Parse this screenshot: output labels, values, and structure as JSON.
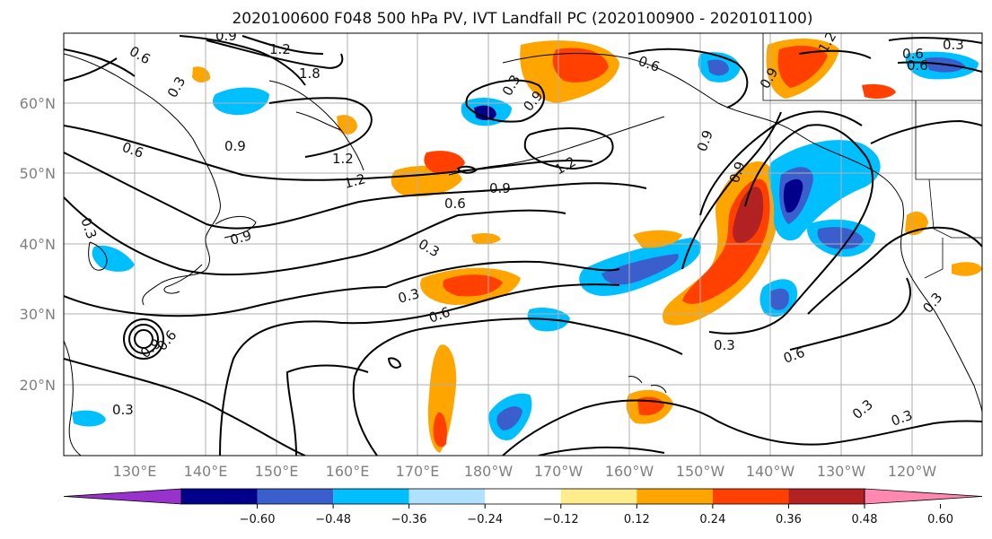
{
  "title": "2020100600 F048 500 hPa PV, IVT Landfall PC (2020100900 - 2020101100)",
  "map": {
    "lon_ticks": [
      "130°E",
      "140°E",
      "150°E",
      "160°E",
      "170°E",
      "180°W",
      "170°W",
      "160°W",
      "150°W",
      "140°W",
      "130°W",
      "120°W"
    ],
    "lat_ticks": [
      "60°N",
      "50°N",
      "40°N",
      "30°N",
      "20°N"
    ],
    "grid": true
  },
  "colorbar": {
    "ticks": [
      "−0.60",
      "−0.48",
      "−0.36",
      "−0.24",
      "−0.12",
      "0.12",
      "0.24",
      "0.36",
      "0.48",
      "0.60"
    ],
    "colors": [
      "#9932cc",
      "#00008b",
      "#3a5fcd",
      "#00bfff",
      "#b0e2ff",
      "#ffffff",
      "#ffec8b",
      "#ffa500",
      "#ff4000",
      "#b22222",
      "#ff88b0"
    ],
    "extend": "both"
  },
  "contour_labels": [
    "0.6",
    "0.9",
    "1.2",
    "1.8",
    "0.3",
    "0.6",
    "0.9",
    "1.2",
    "1.2",
    "0.9",
    "0.6",
    "0.3",
    "0.9",
    "0.3",
    "0.6",
    "0.3",
    "0.9",
    "0.6",
    "0.3",
    "0.3",
    "0.6",
    "0.9",
    "0.6",
    "1.2",
    "0.3",
    "0.9",
    "0.9",
    "0.6",
    "0.3",
    "0.3",
    "0.3",
    "0.3",
    "0.6",
    "0.9",
    "1.2"
  ]
}
